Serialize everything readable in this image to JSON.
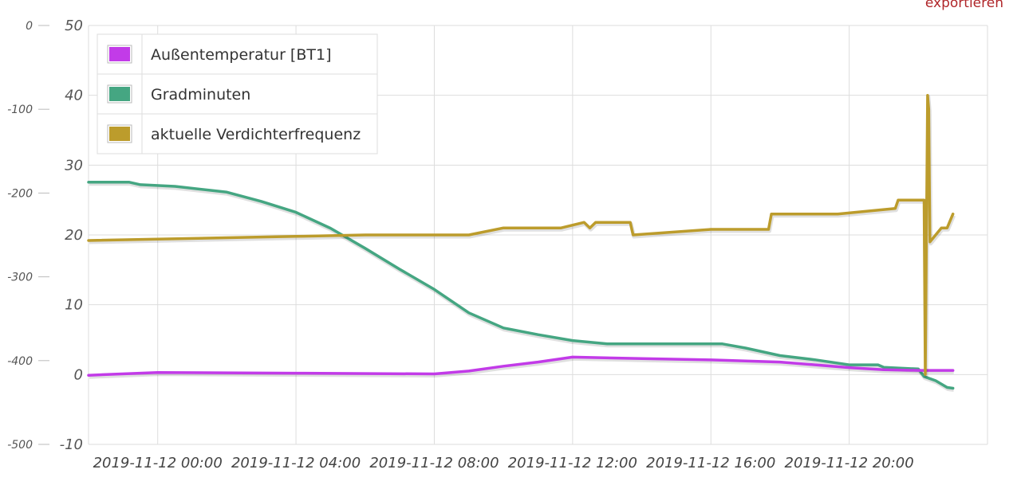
{
  "export_label": "exportieren",
  "colors": {
    "background": "#ffffff",
    "grid": "#dddddd",
    "axis_text": "#555555"
  },
  "chart_data": {
    "type": "line",
    "title": "",
    "grid": true,
    "legend_position": "top-left",
    "x_axis": {
      "min": "2019-11-11 22:00",
      "max": "2019-11-13 00:00",
      "tick_labels": [
        "2019-11-12 00:00",
        "2019-11-12 04:00",
        "2019-11-12 08:00",
        "2019-11-12 12:00",
        "2019-11-12 16:00",
        "2019-11-12 20:00"
      ]
    },
    "y_axis_left": {
      "min": -500,
      "max": 0,
      "tick_labels": [
        "0",
        "-100",
        "-200",
        "-300",
        "-400",
        "-500"
      ]
    },
    "y_axis_right": {
      "min": -10,
      "max": 50,
      "tick_labels": [
        "50",
        "40",
        "30",
        "20",
        "10",
        "0",
        "-10"
      ]
    },
    "series": [
      {
        "name": "Außentemperatur [BT1]",
        "color": "#c23be8",
        "axis": "right",
        "points": [
          [
            "2019-11-11 22:00",
            -0.1
          ],
          [
            "2019-11-12 00:00",
            0.3
          ],
          [
            "2019-11-12 04:00",
            0.2
          ],
          [
            "2019-11-12 08:00",
            0.1
          ],
          [
            "2019-11-12 09:00",
            0.5
          ],
          [
            "2019-11-12 10:00",
            1.2
          ],
          [
            "2019-11-12 11:00",
            1.8
          ],
          [
            "2019-11-12 12:00",
            2.5
          ],
          [
            "2019-11-12 14:00",
            2.3
          ],
          [
            "2019-11-12 16:00",
            2.1
          ],
          [
            "2019-11-12 18:00",
            1.8
          ],
          [
            "2019-11-12 20:00",
            1.0
          ],
          [
            "2019-11-12 21:00",
            0.7
          ],
          [
            "2019-11-12 22:00",
            0.6
          ],
          [
            "2019-11-12 23:00",
            0.6
          ]
        ]
      },
      {
        "name": "Gradminuten",
        "color": "#45a682",
        "axis": "left",
        "points": [
          [
            "2019-11-11 22:00",
            -187
          ],
          [
            "2019-11-11 23:10",
            -187
          ],
          [
            "2019-11-11 23:30",
            -190
          ],
          [
            "2019-11-12 00:30",
            -192
          ],
          [
            "2019-11-12 02:00",
            -199
          ],
          [
            "2019-11-12 03:00",
            -210
          ],
          [
            "2019-11-12 04:00",
            -223
          ],
          [
            "2019-11-12 05:00",
            -242
          ],
          [
            "2019-11-12 06:00",
            -266
          ],
          [
            "2019-11-12 07:00",
            -291
          ],
          [
            "2019-11-12 08:00",
            -315
          ],
          [
            "2019-11-12 09:00",
            -343
          ],
          [
            "2019-11-12 10:00",
            -361
          ],
          [
            "2019-11-12 11:00",
            -369
          ],
          [
            "2019-11-12 12:00",
            -376
          ],
          [
            "2019-11-12 13:00",
            -380
          ],
          [
            "2019-11-12 14:00",
            -380
          ],
          [
            "2019-11-12 15:00",
            -380
          ],
          [
            "2019-11-12 16:20",
            -380
          ],
          [
            "2019-11-12 17:00",
            -385
          ],
          [
            "2019-11-12 18:00",
            -394
          ],
          [
            "2019-11-12 19:00",
            -399
          ],
          [
            "2019-11-12 20:00",
            -405
          ],
          [
            "2019-11-12 20:50",
            -405
          ],
          [
            "2019-11-12 21:00",
            -408
          ],
          [
            "2019-11-12 22:00",
            -410
          ],
          [
            "2019-11-12 22:10",
            -419
          ],
          [
            "2019-11-12 22:30",
            -424
          ],
          [
            "2019-11-12 22:50",
            -432
          ],
          [
            "2019-11-12 23:00",
            -433
          ]
        ]
      },
      {
        "name": "aktuelle Verdichterfrequenz",
        "color": "#bc9c2c",
        "axis": "right",
        "points": [
          [
            "2019-11-11 22:00",
            19.2
          ],
          [
            "2019-11-12 04:00",
            19.8
          ],
          [
            "2019-11-12 06:00",
            20.0
          ],
          [
            "2019-11-12 09:00",
            20.0
          ],
          [
            "2019-11-12 10:00",
            21.0
          ],
          [
            "2019-11-12 11:40",
            21.0
          ],
          [
            "2019-11-12 12:20",
            21.8
          ],
          [
            "2019-11-12 12:30",
            21.0
          ],
          [
            "2019-11-12 12:40",
            21.8
          ],
          [
            "2019-11-12 13:40",
            21.8
          ],
          [
            "2019-11-12 13:45",
            20.0
          ],
          [
            "2019-11-12 16:00",
            20.8
          ],
          [
            "2019-11-12 17:40",
            20.8
          ],
          [
            "2019-11-12 17:45",
            23.0
          ],
          [
            "2019-11-12 19:40",
            23.0
          ],
          [
            "2019-11-12 21:20",
            23.8
          ],
          [
            "2019-11-12 21:25",
            25.0
          ],
          [
            "2019-11-12 22:10",
            25.0
          ],
          [
            "2019-11-12 22:12",
            0.0
          ],
          [
            "2019-11-12 22:16",
            40.0
          ],
          [
            "2019-11-12 22:18",
            38.0
          ],
          [
            "2019-11-12 22:20",
            19.0
          ],
          [
            "2019-11-12 22:30",
            20.0
          ],
          [
            "2019-11-12 22:40",
            21.0
          ],
          [
            "2019-11-12 22:50",
            21.0
          ],
          [
            "2019-11-12 23:00",
            23.0
          ]
        ]
      }
    ]
  }
}
